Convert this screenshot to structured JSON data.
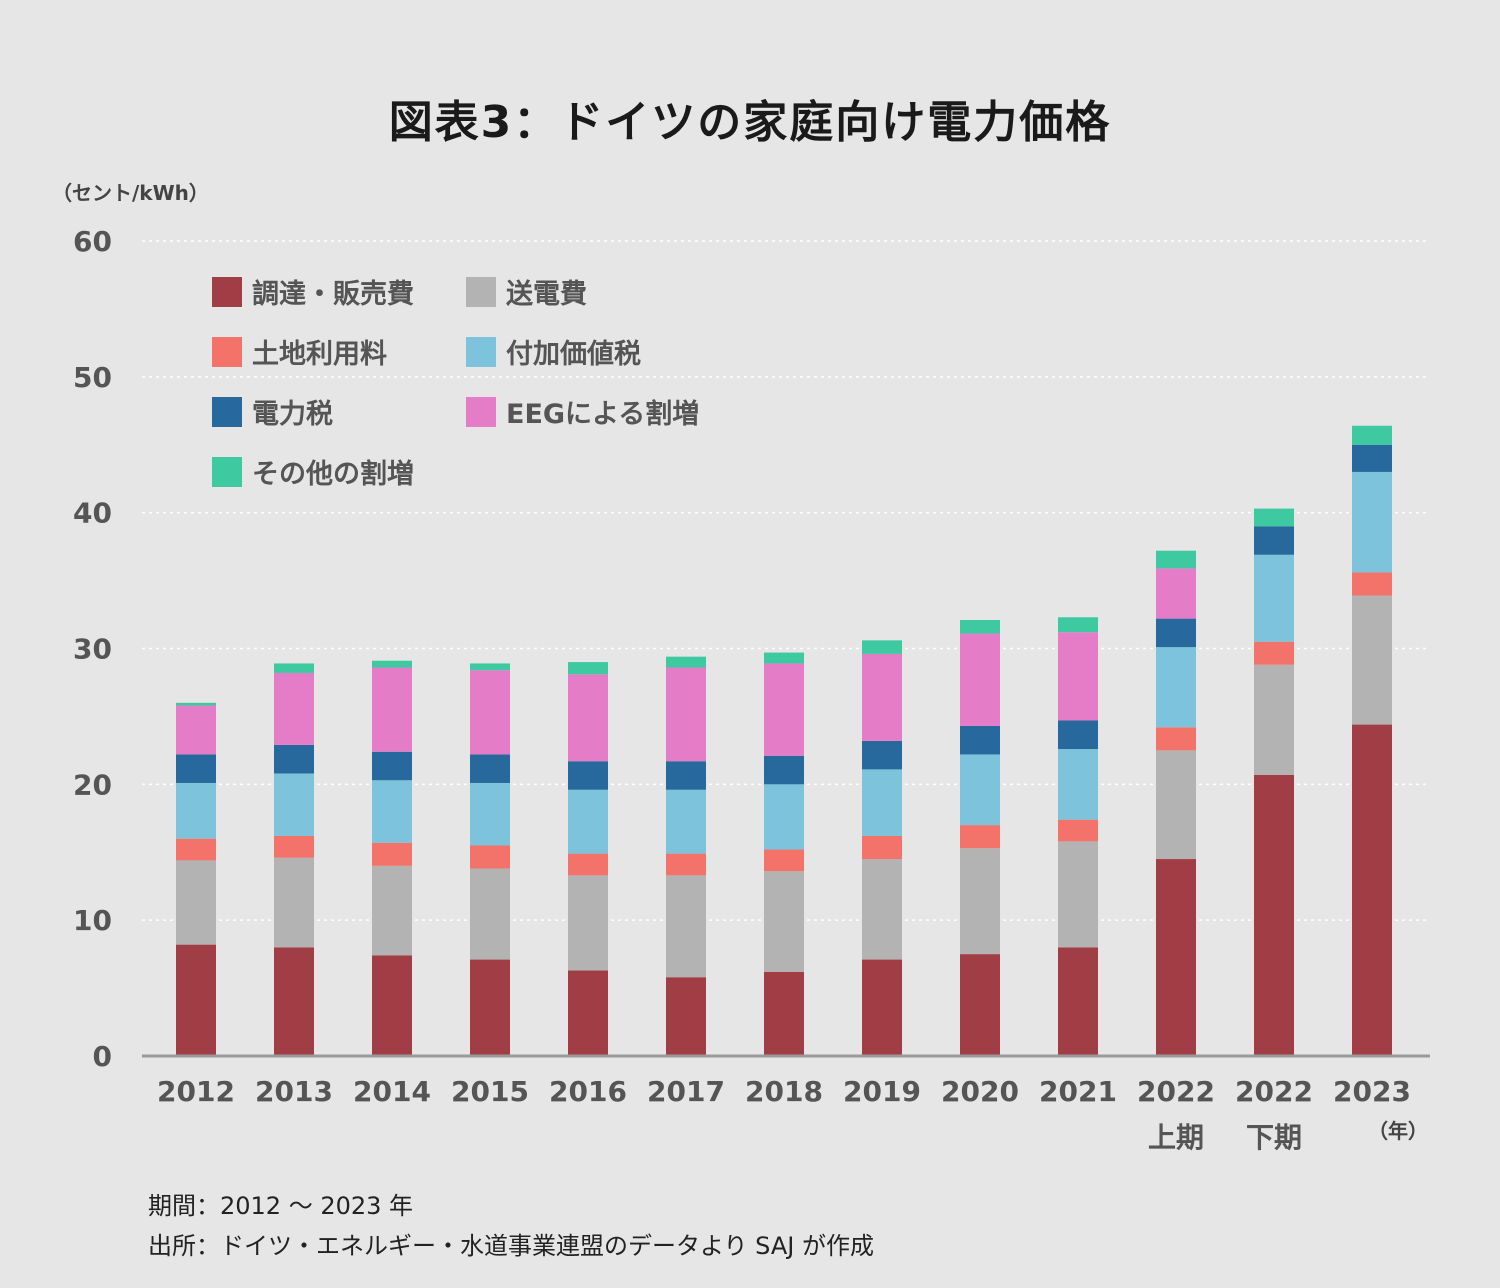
{
  "chart_data": {
    "type": "bar",
    "stacked": true,
    "title": "図表3：ドイツの家庭向け電力価格",
    "ylabel": "（セント/kWh）",
    "xlabel": "（年）",
    "ylim": [
      0,
      60
    ],
    "yticks": [
      0,
      10,
      20,
      30,
      40,
      50,
      60
    ],
    "grid": true,
    "legend_position": "top-left",
    "categories": [
      [
        "2012"
      ],
      [
        "2013"
      ],
      [
        "2014"
      ],
      [
        "2015"
      ],
      [
        "2016"
      ],
      [
        "2017"
      ],
      [
        "2018"
      ],
      [
        "2019"
      ],
      [
        "2020"
      ],
      [
        "2021"
      ],
      [
        "2022",
        "上期"
      ],
      [
        "2022",
        "下期"
      ],
      [
        "2023"
      ]
    ],
    "series": [
      {
        "name": "調達・販売費",
        "color": "#a13d44",
        "values": [
          8.2,
          8.0,
          7.4,
          7.1,
          6.3,
          5.8,
          6.2,
          7.1,
          7.5,
          8.0,
          14.5,
          20.7,
          24.4
        ]
      },
      {
        "name": "送電費",
        "color": "#b3b3b3",
        "values": [
          6.2,
          6.6,
          6.6,
          6.7,
          7.0,
          7.5,
          7.4,
          7.4,
          7.8,
          7.8,
          8.0,
          8.1,
          9.5
        ]
      },
      {
        "name": "土地利用料",
        "color": "#f3736a",
        "values": [
          1.6,
          1.6,
          1.7,
          1.7,
          1.6,
          1.6,
          1.6,
          1.7,
          1.7,
          1.6,
          1.7,
          1.7,
          1.7
        ]
      },
      {
        "name": "付加価値税",
        "color": "#7dc3db",
        "values": [
          4.1,
          4.6,
          4.6,
          4.6,
          4.7,
          4.7,
          4.8,
          4.9,
          5.2,
          5.2,
          5.9,
          6.4,
          7.4
        ]
      },
      {
        "name": "電力税",
        "color": "#27699c",
        "values": [
          2.1,
          2.1,
          2.1,
          2.1,
          2.1,
          2.1,
          2.1,
          2.1,
          2.1,
          2.1,
          2.1,
          2.1,
          2.0
        ]
      },
      {
        "name": "EEGによる割増",
        "color": "#e47cc8",
        "values": [
          3.6,
          5.3,
          6.2,
          6.2,
          6.4,
          6.9,
          6.8,
          6.4,
          6.8,
          6.5,
          3.7,
          0,
          0
        ]
      },
      {
        "name": "その他の割増",
        "color": "#3ec9a0",
        "values": [
          0.2,
          0.7,
          0.5,
          0.5,
          0.9,
          0.8,
          0.8,
          1.0,
          1.0,
          1.1,
          1.3,
          1.3,
          1.4
        ]
      }
    ]
  },
  "footnotes": {
    "period": "期間：2012 〜 2023 年",
    "source": "出所：ドイツ・エネルギー・水道事業連盟のデータより SAJ が作成"
  }
}
